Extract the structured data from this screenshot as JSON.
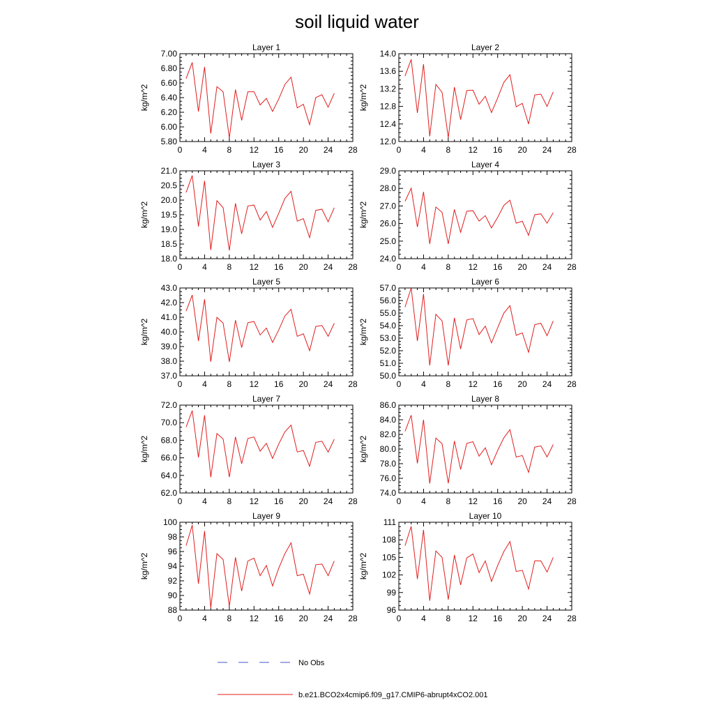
{
  "title": "soil liquid water",
  "legend": {
    "items": [
      {
        "label": "No Obs",
        "color": "#4455cc",
        "style": "dashed"
      },
      {
        "label": "b.e21.BCO2x4cmip6.f09_g17.CMIP6-abrupt4xCO2.001",
        "color": "#e11d1d",
        "style": "solid"
      }
    ]
  },
  "colors": {
    "series": "#e11d1d",
    "obs": "#4455cc"
  },
  "chart_data": [
    {
      "type": "line",
      "title": "Layer 1",
      "xlabel": "",
      "ylabel": "kg/m^2",
      "xlim": [
        0,
        28
      ],
      "ylim": [
        5.8,
        7.0
      ],
      "xticks": [
        0,
        4,
        8,
        12,
        16,
        20,
        24,
        28
      ],
      "yticks": [
        "5.80",
        "6.00",
        "6.20",
        "6.40",
        "6.60",
        "6.80",
        "7.00"
      ],
      "x": [
        1,
        2,
        3,
        4,
        5,
        6,
        7,
        8,
        9,
        10,
        11,
        12,
        13,
        14,
        15,
        16,
        17,
        18,
        19,
        20,
        21,
        22,
        23,
        24,
        25
      ],
      "series": [
        {
          "name": "b.e21.BCO2x4cmip6.f09_g17.CMIP6-abrupt4xCO2.001",
          "values": [
            6.66,
            6.88,
            6.21,
            6.82,
            5.91,
            6.55,
            6.48,
            5.85,
            6.51,
            6.09,
            6.48,
            6.48,
            6.3,
            6.39,
            6.21,
            6.38,
            6.58,
            6.68,
            6.26,
            6.31,
            6.03,
            6.4,
            6.44,
            6.27,
            6.46
          ]
        }
      ]
    },
    {
      "type": "line",
      "title": "Layer 2",
      "xlabel": "",
      "ylabel": "kg/m^2",
      "xlim": [
        0,
        28
      ],
      "ylim": [
        12.0,
        14.0
      ],
      "xticks": [
        0,
        4,
        8,
        12,
        16,
        20,
        24,
        28
      ],
      "yticks": [
        "12.0",
        "12.4",
        "12.8",
        "13.2",
        "13.6",
        "14.0"
      ],
      "x": [
        1,
        2,
        3,
        4,
        5,
        6,
        7,
        8,
        9,
        10,
        11,
        12,
        13,
        14,
        15,
        16,
        17,
        18,
        19,
        20,
        21,
        22,
        23,
        24,
        25
      ],
      "series": [
        {
          "name": "b.e21.BCO2x4cmip6.f09_g17.CMIP6-abrupt4xCO2.001",
          "values": [
            13.49,
            13.87,
            12.65,
            13.76,
            12.12,
            13.3,
            13.12,
            12.09,
            13.24,
            12.5,
            13.16,
            13.17,
            12.85,
            13.03,
            12.66,
            12.99,
            13.35,
            13.52,
            12.79,
            12.87,
            12.4,
            13.06,
            13.08,
            12.8,
            13.13
          ]
        }
      ]
    },
    {
      "type": "line",
      "title": "Layer 3",
      "xlabel": "",
      "ylabel": "kg/m^2",
      "xlim": [
        0,
        28
      ],
      "ylim": [
        18.0,
        21.0
      ],
      "xticks": [
        0,
        4,
        8,
        12,
        16,
        20,
        24,
        28
      ],
      "yticks": [
        "18.0",
        "18.5",
        "19.0",
        "19.5",
        "20.0",
        "20.5",
        "21.0"
      ],
      "x": [
        1,
        2,
        3,
        4,
        5,
        6,
        7,
        8,
        9,
        10,
        11,
        12,
        13,
        14,
        15,
        16,
        17,
        18,
        19,
        20,
        21,
        22,
        23,
        24,
        25
      ],
      "series": [
        {
          "name": "b.e21.BCO2x4cmip6.f09_g17.CMIP6-abrupt4xCO2.001",
          "values": [
            20.26,
            20.84,
            19.1,
            20.66,
            18.3,
            19.98,
            19.74,
            18.28,
            19.89,
            18.85,
            19.8,
            19.83,
            19.32,
            19.61,
            19.07,
            19.55,
            20.06,
            20.3,
            19.28,
            19.37,
            18.72,
            19.65,
            19.69,
            19.26,
            19.74
          ]
        }
      ]
    },
    {
      "type": "line",
      "title": "Layer 4",
      "xlabel": "",
      "ylabel": "kg/m^2",
      "xlim": [
        0,
        28
      ],
      "ylim": [
        24.0,
        29.0
      ],
      "xticks": [
        0,
        4,
        8,
        12,
        16,
        20,
        24,
        28
      ],
      "yticks": [
        "24.0",
        "25.0",
        "26.0",
        "27.0",
        "28.0",
        "29.0"
      ],
      "x": [
        1,
        2,
        3,
        4,
        5,
        6,
        7,
        8,
        9,
        10,
        11,
        12,
        13,
        14,
        15,
        16,
        17,
        18,
        19,
        20,
        21,
        22,
        23,
        24,
        25
      ],
      "series": [
        {
          "name": "b.e21.BCO2x4cmip6.f09_g17.CMIP6-abrupt4xCO2.001",
          "values": [
            27.27,
            28.01,
            25.8,
            27.8,
            24.84,
            26.94,
            26.64,
            24.84,
            26.8,
            25.5,
            26.7,
            26.73,
            26.14,
            26.45,
            25.75,
            26.35,
            27.03,
            27.33,
            26.02,
            26.13,
            25.33,
            26.5,
            26.55,
            26.02,
            26.62
          ]
        }
      ]
    },
    {
      "type": "line",
      "title": "Layer 5",
      "xlabel": "",
      "ylabel": "kg/m^2",
      "xlim": [
        0,
        28
      ],
      "ylim": [
        37.0,
        43.0
      ],
      "xticks": [
        0,
        4,
        8,
        12,
        16,
        20,
        24,
        28
      ],
      "yticks": [
        "37.0",
        "38.0",
        "39.0",
        "40.0",
        "41.0",
        "42.0",
        "43.0"
      ],
      "x": [
        1,
        2,
        3,
        4,
        5,
        6,
        7,
        8,
        9,
        10,
        11,
        12,
        13,
        14,
        15,
        16,
        17,
        18,
        19,
        20,
        21,
        22,
        23,
        24,
        25
      ],
      "series": [
        {
          "name": "b.e21.BCO2x4cmip6.f09_g17.CMIP6-abrupt4xCO2.001",
          "values": [
            41.42,
            42.52,
            39.38,
            42.23,
            37.96,
            40.99,
            40.6,
            37.95,
            40.8,
            38.93,
            40.63,
            40.71,
            39.79,
            40.26,
            39.28,
            40.13,
            41.09,
            41.55,
            39.7,
            39.87,
            38.72,
            40.37,
            40.44,
            39.7,
            40.59
          ]
        }
      ]
    },
    {
      "type": "line",
      "title": "Layer 6",
      "xlabel": "",
      "ylabel": "kg/m^2",
      "xlim": [
        0,
        28
      ],
      "ylim": [
        50.0,
        57.0
      ],
      "xticks": [
        0,
        4,
        8,
        12,
        16,
        20,
        24,
        28
      ],
      "yticks": [
        "50.0",
        "51.0",
        "52.0",
        "53.0",
        "54.0",
        "55.0",
        "56.0",
        "57.0"
      ],
      "x": [
        1,
        2,
        3,
        4,
        5,
        6,
        7,
        8,
        9,
        10,
        11,
        12,
        13,
        14,
        15,
        16,
        17,
        18,
        19,
        20,
        21,
        22,
        23,
        24,
        25
      ],
      "series": [
        {
          "name": "b.e21.BCO2x4cmip6.f09_g17.CMIP6-abrupt4xCO2.001",
          "values": [
            55.47,
            57.0,
            52.78,
            56.52,
            50.83,
            54.9,
            54.38,
            50.82,
            54.62,
            52.14,
            54.45,
            54.56,
            53.29,
            53.96,
            52.62,
            53.82,
            55.0,
            55.59,
            53.23,
            53.42,
            51.88,
            54.07,
            54.19,
            53.2,
            54.37
          ]
        }
      ]
    },
    {
      "type": "line",
      "title": "Layer 7",
      "xlabel": "",
      "ylabel": "kg/m^2",
      "xlim": [
        0,
        28
      ],
      "ylim": [
        62.0,
        72.0
      ],
      "xticks": [
        0,
        4,
        8,
        12,
        16,
        20,
        24,
        28
      ],
      "yticks": [
        "62.0",
        "64.0",
        "66.0",
        "68.0",
        "70.0",
        "72.0"
      ],
      "x": [
        1,
        2,
        3,
        4,
        5,
        6,
        7,
        8,
        9,
        10,
        11,
        12,
        13,
        14,
        15,
        16,
        17,
        18,
        19,
        20,
        21,
        22,
        23,
        24,
        25
      ],
      "series": [
        {
          "name": "b.e21.BCO2x4cmip6.f09_g17.CMIP6-abrupt4xCO2.001",
          "values": [
            69.51,
            71.37,
            66.05,
            70.84,
            63.8,
            68.77,
            68.14,
            63.81,
            68.38,
            65.33,
            68.2,
            68.37,
            66.75,
            67.65,
            65.93,
            67.56,
            68.96,
            69.72,
            66.67,
            66.83,
            65.03,
            67.76,
            67.89,
            66.65,
            68.12
          ]
        }
      ]
    },
    {
      "type": "line",
      "title": "Layer 8",
      "xlabel": "",
      "ylabel": "kg/m^2",
      "xlim": [
        0,
        28
      ],
      "ylim": [
        74.0,
        86.0
      ],
      "xticks": [
        0,
        4,
        8,
        12,
        16,
        20,
        24,
        28
      ],
      "yticks": [
        "74.0",
        "76.0",
        "78.0",
        "80.0",
        "82.0",
        "84.0",
        "86.0"
      ],
      "x": [
        1,
        2,
        3,
        4,
        5,
        6,
        7,
        8,
        9,
        10,
        11,
        12,
        13,
        14,
        15,
        16,
        17,
        18,
        19,
        20,
        21,
        22,
        23,
        24,
        25
      ],
      "series": [
        {
          "name": "b.e21.BCO2x4cmip6.f09_g17.CMIP6-abrupt4xCO2.001",
          "values": [
            82.42,
            84.62,
            78.05,
            84.0,
            75.3,
            81.5,
            80.72,
            75.31,
            81.1,
            77.22,
            80.77,
            81.0,
            79.02,
            80.17,
            77.86,
            79.8,
            81.53,
            82.65,
            78.9,
            79.11,
            76.82,
            80.27,
            80.43,
            78.92,
            80.62
          ]
        }
      ]
    },
    {
      "type": "line",
      "title": "Layer 9",
      "xlabel": "",
      "ylabel": "kg/m^2",
      "xlim": [
        0,
        28
      ],
      "ylim": [
        88,
        100
      ],
      "xticks": [
        0,
        4,
        8,
        12,
        16,
        20,
        24,
        28
      ],
      "yticks": [
        "88",
        "90",
        "92",
        "94",
        "96",
        "98",
        "100"
      ],
      "x": [
        1,
        2,
        3,
        4,
        5,
        6,
        7,
        8,
        9,
        10,
        11,
        12,
        13,
        14,
        15,
        16,
        17,
        18,
        19,
        20,
        21,
        22,
        23,
        24,
        25
      ],
      "series": [
        {
          "name": "b.e21.BCO2x4cmip6.f09_g17.CMIP6-abrupt4xCO2.001",
          "values": [
            96.8,
            99.6,
            91.6,
            98.8,
            88.3,
            95.7,
            94.9,
            88.5,
            95.2,
            90.6,
            94.7,
            95.1,
            92.7,
            94.1,
            91.3,
            93.7,
            95.7,
            97.2,
            92.7,
            92.9,
            90.2,
            94.2,
            94.3,
            92.7,
            94.7
          ]
        }
      ]
    },
    {
      "type": "line",
      "title": "Layer 10",
      "xlabel": "",
      "ylabel": "kg/m^2",
      "xlim": [
        0,
        28
      ],
      "ylim": [
        96,
        111
      ],
      "xticks": [
        0,
        4,
        8,
        12,
        16,
        20,
        24,
        28
      ],
      "yticks": [
        "96",
        "99",
        "102",
        "105",
        "108",
        "111"
      ],
      "x": [
        1,
        2,
        3,
        4,
        5,
        6,
        7,
        8,
        9,
        10,
        11,
        12,
        13,
        14,
        15,
        16,
        17,
        18,
        19,
        20,
        21,
        22,
        23,
        24,
        25
      ],
      "series": [
        {
          "name": "b.e21.BCO2x4cmip6.f09_g17.CMIP6-abrupt4xCO2.001",
          "values": [
            107.0,
            110.3,
            101.3,
            109.7,
            97.6,
            106.1,
            105.0,
            97.8,
            105.4,
            100.3,
            104.9,
            105.6,
            102.4,
            104.4,
            100.9,
            103.6,
            106.0,
            107.7,
            102.6,
            102.8,
            99.6,
            104.4,
            104.4,
            102.5,
            105.0
          ]
        }
      ]
    }
  ]
}
